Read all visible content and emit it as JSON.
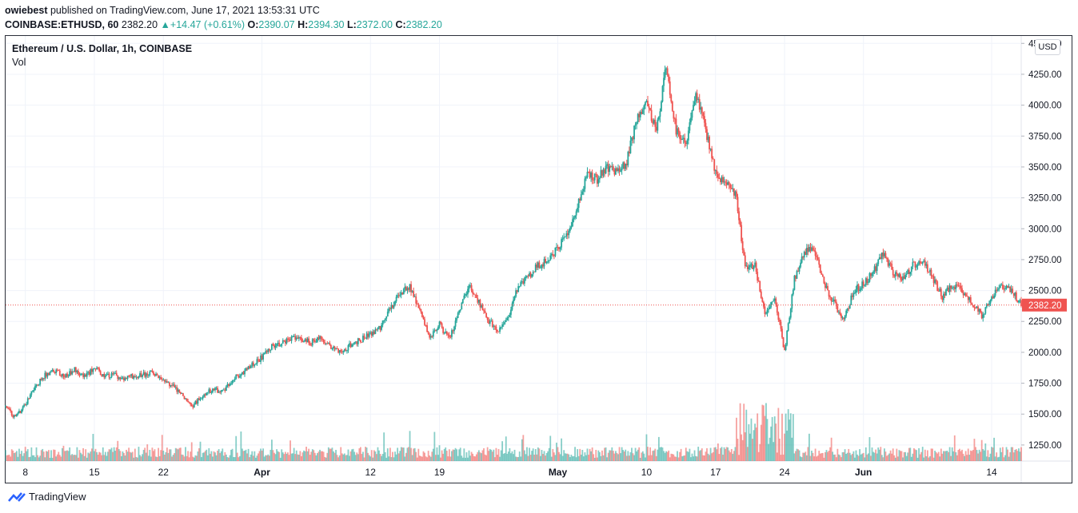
{
  "header": {
    "author": "owiebest",
    "published": "published on TradingView.com, June 17, 2021 13:53:31 UTC",
    "symbol": "COINBASE:ETHUSD, 60",
    "last": "2382.20",
    "change": "+14.47 (+0.61%)",
    "o_label": "O:",
    "o": "2390.07",
    "h_label": "H:",
    "h": "2394.30",
    "l_label": "L:",
    "l": "2372.00",
    "c_label": "C:",
    "c": "2382.20"
  },
  "legend": {
    "title": "Ethereum / U.S. Dollar, 1h, COINBASE",
    "vol": "Vol"
  },
  "currency": "USD",
  "footer": {
    "brand": "TradingView"
  },
  "colors": {
    "up": "#26a69a",
    "down": "#ef5350",
    "price_line": "#ef5350",
    "grid": "#f0f3fa"
  },
  "chart_data": {
    "type": "candlestick",
    "title": "Ethereum / U.S. Dollar, 1h, COINBASE",
    "interval": "1h",
    "current_price": 2382.2,
    "ylim": [
      1120,
      4560
    ],
    "y_ticks": [
      1250,
      1500,
      1750,
      2000,
      2250,
      2500,
      2750,
      3000,
      3250,
      3500,
      3750,
      4000,
      4250,
      4500
    ],
    "y_tick_labels": [
      "1250.00",
      "1500.00",
      "1750.00",
      "2000.00",
      "2250.00",
      "2500.00",
      "2750.00",
      "3000.00",
      "3250.00",
      "3500.00",
      "3750.00",
      "4000.00",
      "4250.00",
      "4500.00"
    ],
    "x_range": [
      "2021-03-06",
      "2021-06-17"
    ],
    "x_ticks": [
      {
        "date": "2021-03-08",
        "label": "8"
      },
      {
        "date": "2021-03-15",
        "label": "15"
      },
      {
        "date": "2021-03-22",
        "label": "22"
      },
      {
        "date": "2021-04-01",
        "label": "Apr"
      },
      {
        "date": "2021-04-12",
        "label": "12"
      },
      {
        "date": "2021-04-19",
        "label": "19"
      },
      {
        "date": "2021-05-01",
        "label": "May"
      },
      {
        "date": "2021-05-10",
        "label": "10"
      },
      {
        "date": "2021-05-17",
        "label": "17"
      },
      {
        "date": "2021-05-24",
        "label": "24"
      },
      {
        "date": "2021-06-01",
        "label": "Jun"
      },
      {
        "date": "2021-06-14",
        "label": "14"
      }
    ],
    "price_path": [
      [
        "2021-03-06",
        1560
      ],
      [
        "2021-03-07",
        1470
      ],
      [
        "2021-03-08",
        1580
      ],
      [
        "2021-03-09",
        1720
      ],
      [
        "2021-03-10",
        1820
      ],
      [
        "2021-03-11",
        1850
      ],
      [
        "2021-03-12",
        1800
      ],
      [
        "2021-03-13",
        1860
      ],
      [
        "2021-03-14",
        1800
      ],
      [
        "2021-03-15",
        1880
      ],
      [
        "2021-03-16",
        1800
      ],
      [
        "2021-03-17",
        1820
      ],
      [
        "2021-03-18",
        1780
      ],
      [
        "2021-03-19",
        1810
      ],
      [
        "2021-03-20",
        1820
      ],
      [
        "2021-03-21",
        1840
      ],
      [
        "2021-03-22",
        1780
      ],
      [
        "2021-03-23",
        1720
      ],
      [
        "2021-03-24",
        1650
      ],
      [
        "2021-03-25",
        1570
      ],
      [
        "2021-03-26",
        1650
      ],
      [
        "2021-03-27",
        1700
      ],
      [
        "2021-03-28",
        1680
      ],
      [
        "2021-03-29",
        1780
      ],
      [
        "2021-03-30",
        1830
      ],
      [
        "2021-03-31",
        1900
      ],
      [
        "2021-04-01",
        1960
      ],
      [
        "2021-04-02",
        2050
      ],
      [
        "2021-04-03",
        2080
      ],
      [
        "2021-04-04",
        2120
      ],
      [
        "2021-04-05",
        2100
      ],
      [
        "2021-04-06",
        2080
      ],
      [
        "2021-04-07",
        2120
      ],
      [
        "2021-04-08",
        2050
      ],
      [
        "2021-04-09",
        2000
      ],
      [
        "2021-04-10",
        2060
      ],
      [
        "2021-04-11",
        2100
      ],
      [
        "2021-04-12",
        2150
      ],
      [
        "2021-04-13",
        2200
      ],
      [
        "2021-04-14",
        2350
      ],
      [
        "2021-04-15",
        2470
      ],
      [
        "2021-04-16",
        2540
      ],
      [
        "2021-04-17",
        2350
      ],
      [
        "2021-04-18",
        2100
      ],
      [
        "2021-04-19",
        2230
      ],
      [
        "2021-04-20",
        2100
      ],
      [
        "2021-04-21",
        2350
      ],
      [
        "2021-04-22",
        2550
      ],
      [
        "2021-04-23",
        2400
      ],
      [
        "2021-04-24",
        2250
      ],
      [
        "2021-04-25",
        2180
      ],
      [
        "2021-04-26",
        2300
      ],
      [
        "2021-04-27",
        2550
      ],
      [
        "2021-04-28",
        2620
      ],
      [
        "2021-04-29",
        2700
      ],
      [
        "2021-04-30",
        2750
      ],
      [
        "2021-05-01",
        2850
      ],
      [
        "2021-05-02",
        2950
      ],
      [
        "2021-05-03",
        3200
      ],
      [
        "2021-05-04",
        3450
      ],
      [
        "2021-05-05",
        3400
      ],
      [
        "2021-05-06",
        3500
      ],
      [
        "2021-05-07",
        3450
      ],
      [
        "2021-05-08",
        3550
      ],
      [
        "2021-05-09",
        3900
      ],
      [
        "2021-05-10",
        4000
      ],
      [
        "2021-05-11",
        3800
      ],
      [
        "2021-05-12",
        4300
      ],
      [
        "2021-05-13",
        3800
      ],
      [
        "2021-05-14",
        3700
      ],
      [
        "2021-05-15",
        4100
      ],
      [
        "2021-05-16",
        3800
      ],
      [
        "2021-05-17",
        3450
      ],
      [
        "2021-05-18",
        3350
      ],
      [
        "2021-05-19",
        3300
      ],
      [
        "2021-05-20",
        2700
      ],
      [
        "2021-05-21",
        2700
      ],
      [
        "2021-05-22",
        2300
      ],
      [
        "2021-05-23",
        2450
      ],
      [
        "2021-05-24",
        2000
      ],
      [
        "2021-05-25",
        2600
      ],
      [
        "2021-05-26",
        2800
      ],
      [
        "2021-05-27",
        2850
      ],
      [
        "2021-05-28",
        2550
      ],
      [
        "2021-05-29",
        2400
      ],
      [
        "2021-05-30",
        2250
      ],
      [
        "2021-05-31",
        2500
      ],
      [
        "2021-06-01",
        2550
      ],
      [
        "2021-06-02",
        2650
      ],
      [
        "2021-06-03",
        2800
      ],
      [
        "2021-06-04",
        2650
      ],
      [
        "2021-06-05",
        2600
      ],
      [
        "2021-06-06",
        2700
      ],
      [
        "2021-06-07",
        2750
      ],
      [
        "2021-06-08",
        2600
      ],
      [
        "2021-06-09",
        2450
      ],
      [
        "2021-06-10",
        2550
      ],
      [
        "2021-06-11",
        2500
      ],
      [
        "2021-06-12",
        2400
      ],
      [
        "2021-06-13",
        2300
      ],
      [
        "2021-06-14",
        2450
      ],
      [
        "2021-06-15",
        2550
      ],
      [
        "2021-06-16",
        2500
      ],
      [
        "2021-06-17",
        2382
      ]
    ]
  }
}
